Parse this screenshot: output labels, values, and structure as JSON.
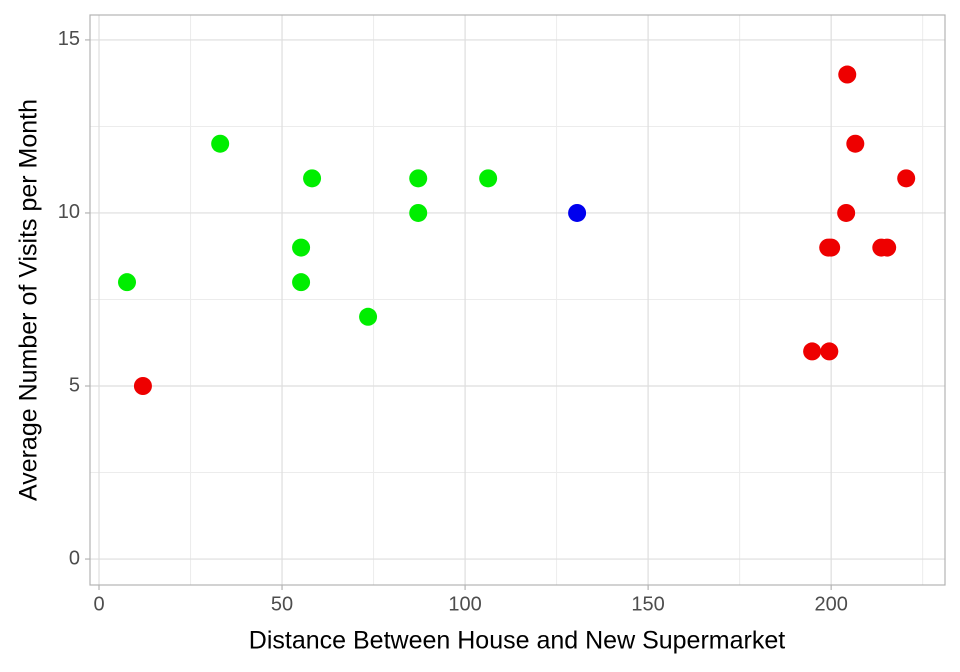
{
  "chart_data": {
    "type": "scatter",
    "xlabel": "Distance Between House and New Supermarket",
    "ylabel": "Average Number of Visits per Month",
    "x": [
      7.65,
      33.1,
      58.2,
      55.2,
      55.2,
      73.5,
      87.2,
      87.2,
      106.3,
      130.6,
      12.0,
      204.4,
      206.6,
      220.5,
      204.1,
      199.2,
      200.0,
      213.7,
      215.3,
      194.8,
      199.5
    ],
    "values": [
      8,
      12,
      11,
      9,
      8,
      7,
      11,
      10,
      11,
      10,
      5,
      14,
      12,
      11,
      10,
      9,
      9,
      9,
      9,
      6,
      6
    ],
    "colors": [
      "#00ee00",
      "#00ee00",
      "#00ee00",
      "#00ee00",
      "#00ee00",
      "#00ee00",
      "#00ee00",
      "#00ee00",
      "#00ee00",
      "#0000ee",
      "#ee0000",
      "#ee0000",
      "#ee0000",
      "#ee0000",
      "#ee0000",
      "#ee0000",
      "#ee0000",
      "#ee0000",
      "#ee0000",
      "#ee0000",
      "#ee0000"
    ],
    "xlim": [
      -2.46,
      231.1
    ],
    "ylim": [
      -0.75,
      15.72
    ],
    "xticks": [
      0,
      50,
      100,
      150,
      200
    ],
    "yticks": [
      0,
      5,
      10,
      15
    ],
    "x_minor_grid": [
      25,
      75,
      125,
      175,
      225
    ],
    "y_minor_grid": [
      2.5,
      7.5,
      12.5
    ],
    "grid": true
  }
}
